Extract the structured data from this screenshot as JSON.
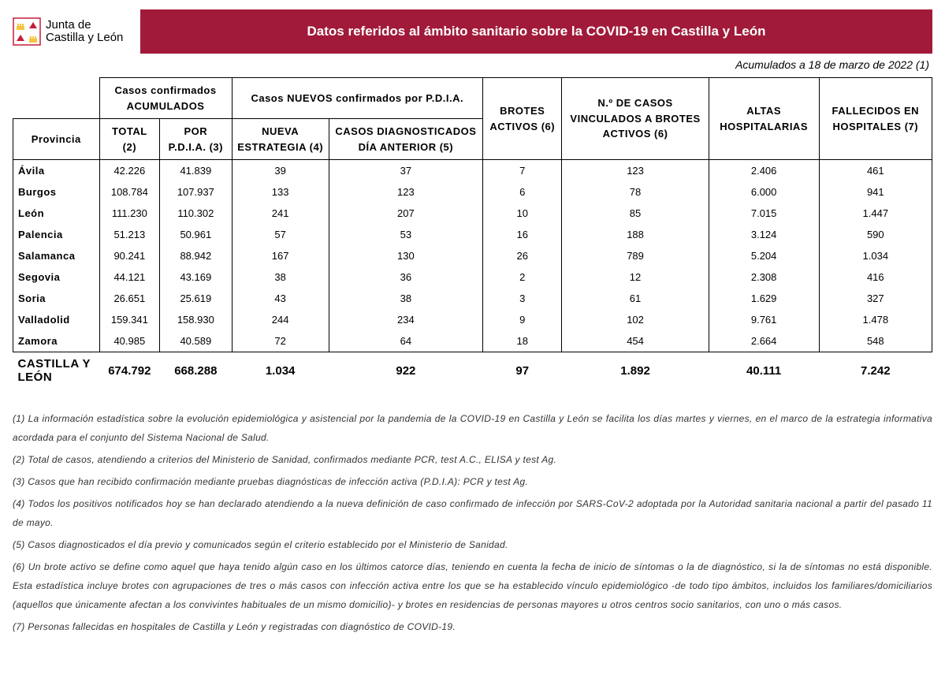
{
  "logo": {
    "line1": "Junta de",
    "line2": "Castilla y León"
  },
  "banner_title": "Datos referidos al ámbito sanitario sobre la COVID-19 en Castilla y León",
  "date_line": "Acumulados a 18 de marzo de 2022 (1)",
  "headers": {
    "group_confirmados": "Casos confirmados ACUMULADOS",
    "group_nuevos": "Casos NUEVOS confirmados por P.D.I.A.",
    "provincia": "Provincia",
    "total": "TOTAL (2)",
    "pdia": "POR P.D.I.A. (3)",
    "nueva_estrategia": "NUEVA ESTRATEGIA (4)",
    "diagnosticados": "CASOS DIAGNOSTICADOS DÍA ANTERIOR (5)",
    "brotes": "BROTES ACTIVOS (6)",
    "vinculados": "N.º DE CASOS VINCULADOS A BROTES ACTIVOS (6)",
    "altas": "ALTAS HOSPITALARIAS",
    "fallecidos": "FALLECIDOS EN HOSPITALES (7)"
  },
  "rows": [
    {
      "prov": "Ávila",
      "total": "42.226",
      "pdia": "41.839",
      "nueva": "39",
      "diag": "37",
      "brotes": "7",
      "vinc": "123",
      "altas": "2.406",
      "fall": "461"
    },
    {
      "prov": "Burgos",
      "total": "108.784",
      "pdia": "107.937",
      "nueva": "133",
      "diag": "123",
      "brotes": "6",
      "vinc": "78",
      "altas": "6.000",
      "fall": "941"
    },
    {
      "prov": "León",
      "total": "111.230",
      "pdia": "110.302",
      "nueva": "241",
      "diag": "207",
      "brotes": "10",
      "vinc": "85",
      "altas": "7.015",
      "fall": "1.447"
    },
    {
      "prov": "Palencia",
      "total": "51.213",
      "pdia": "50.961",
      "nueva": "57",
      "diag": "53",
      "brotes": "16",
      "vinc": "188",
      "altas": "3.124",
      "fall": "590"
    },
    {
      "prov": "Salamanca",
      "total": "90.241",
      "pdia": "88.942",
      "nueva": "167",
      "diag": "130",
      "brotes": "26",
      "vinc": "789",
      "altas": "5.204",
      "fall": "1.034"
    },
    {
      "prov": "Segovia",
      "total": "44.121",
      "pdia": "43.169",
      "nueva": "38",
      "diag": "36",
      "brotes": "2",
      "vinc": "12",
      "altas": "2.308",
      "fall": "416"
    },
    {
      "prov": "Soria",
      "total": "26.651",
      "pdia": "25.619",
      "nueva": "43",
      "diag": "38",
      "brotes": "3",
      "vinc": "61",
      "altas": "1.629",
      "fall": "327"
    },
    {
      "prov": "Valladolid",
      "total": "159.341",
      "pdia": "158.930",
      "nueva": "244",
      "diag": "234",
      "brotes": "9",
      "vinc": "102",
      "altas": "9.761",
      "fall": "1.478"
    },
    {
      "prov": "Zamora",
      "total": "40.985",
      "pdia": "40.589",
      "nueva": "72",
      "diag": "64",
      "brotes": "18",
      "vinc": "454",
      "altas": "2.664",
      "fall": "548"
    }
  ],
  "total_row": {
    "prov": "CASTILLA Y LEÓN",
    "total": "674.792",
    "pdia": "668.288",
    "nueva": "1.034",
    "diag": "922",
    "brotes": "97",
    "vinc": "1.892",
    "altas": "40.111",
    "fall": "7.242"
  },
  "footnotes": [
    "(1) La información estadística sobre la evolución epidemiológica y asistencial por la pandemia de la COVID-19 en Castilla y León se facilita los días martes y viernes, en el marco de la estrategia informativa acordada para el conjunto del Sistema Nacional de Salud.",
    "(2) Total de casos, atendiendo a criterios del Ministerio de Sanidad, confirmados mediante PCR, test A.C., ELISA y test Ag.",
    "(3) Casos que han recibido confirmación mediante pruebas diagnósticas de infección activa (P.D.I.A): PCR y test Ag.",
    "(4) Todos los positivos notificados hoy se han declarado atendiendo a la nueva definición de caso confirmado de infección por SARS-CoV-2 adoptada por la Autoridad sanitaria nacional a partir del pasado 11 de mayo.",
    "(5) Casos diagnosticados el día previo y comunicados según el criterio establecido por el Ministerio de Sanidad.",
    "(6) Un brote activo se define como aquel que haya tenido algún caso en los últimos catorce días, teniendo en cuenta la fecha de inicio de síntomas o la de diagnóstico, si la de síntomas no está disponible. Esta estadística incluye brotes con agrupaciones de tres o más casos con infección activa entre los que se ha establecido vínculo epidemiológico -de todo tipo ámbitos, incluidos los familiares/domiciliarios (aquellos que únicamente afectan a los convivintes habituales de un mismo domicilio)- y brotes en residencias de personas mayores u otros centros socio sanitarios, con uno o más casos.",
    "(7) Personas fallecidas en hospitales de Castilla y León y registradas con diagnóstico de COVID-19."
  ],
  "colors": {
    "banner_bg": "#a11a3a",
    "banner_text": "#ffffff",
    "border": "#000000",
    "crest_red": "#c41e3a",
    "crest_yellow": "#f5c542"
  }
}
